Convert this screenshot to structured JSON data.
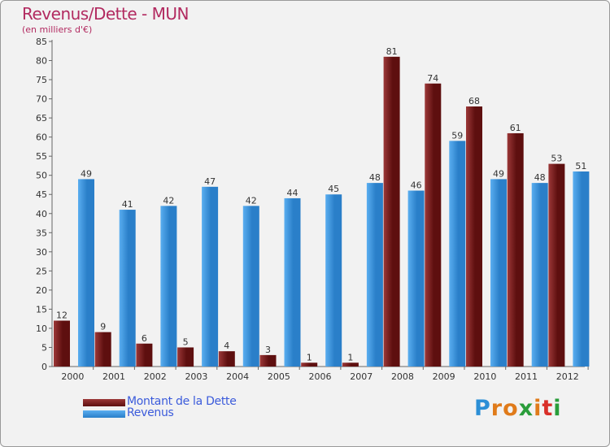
{
  "chart_data": {
    "type": "bar",
    "title": "Revenus/Dette - MUN",
    "subtitle": "(en milliers d'€)",
    "categories": [
      "2000",
      "2001",
      "2002",
      "2003",
      "2004",
      "2005",
      "2006",
      "2007",
      "2008",
      "2009",
      "2010",
      "2011",
      "2012"
    ],
    "series": [
      {
        "name": "Montant de la Dette",
        "color": "#7a1a1a",
        "values": [
          12,
          9,
          6,
          5,
          4,
          3,
          1,
          1,
          81,
          74,
          68,
          61,
          53
        ]
      },
      {
        "name": "Revenus",
        "color": "#3d9ae2",
        "values": [
          49,
          41,
          42,
          47,
          42,
          44,
          45,
          48,
          46,
          59,
          49,
          48,
          51
        ]
      }
    ],
    "ylim": [
      0,
      85
    ],
    "yticks": [
      0,
      5,
      10,
      15,
      20,
      25,
      30,
      35,
      40,
      45,
      50,
      55,
      60,
      65,
      70,
      75,
      80,
      85
    ],
    "grid": false,
    "legend_position": "bottom-left"
  },
  "colors": {
    "title": "#b22a60",
    "debt_dark": "#5e0f0f",
    "debt_light": "#9c3838",
    "revenue_dark": "#2a7fc9",
    "revenue_light": "#5aaef0",
    "legend_text": "#3b5bdb"
  },
  "logo": {
    "text": "Proxiti",
    "letters": [
      {
        "ch": "P",
        "color": "#2c8fd6"
      },
      {
        "ch": "r",
        "color": "#e07b1a"
      },
      {
        "ch": "o",
        "color": "#e07b1a"
      },
      {
        "ch": "x",
        "color": "#2a9d3a"
      },
      {
        "ch": "i",
        "color": "#e07b1a"
      },
      {
        "ch": "t",
        "color": "#d9302a"
      },
      {
        "ch": "i",
        "color": "#2a9d3a"
      }
    ]
  }
}
